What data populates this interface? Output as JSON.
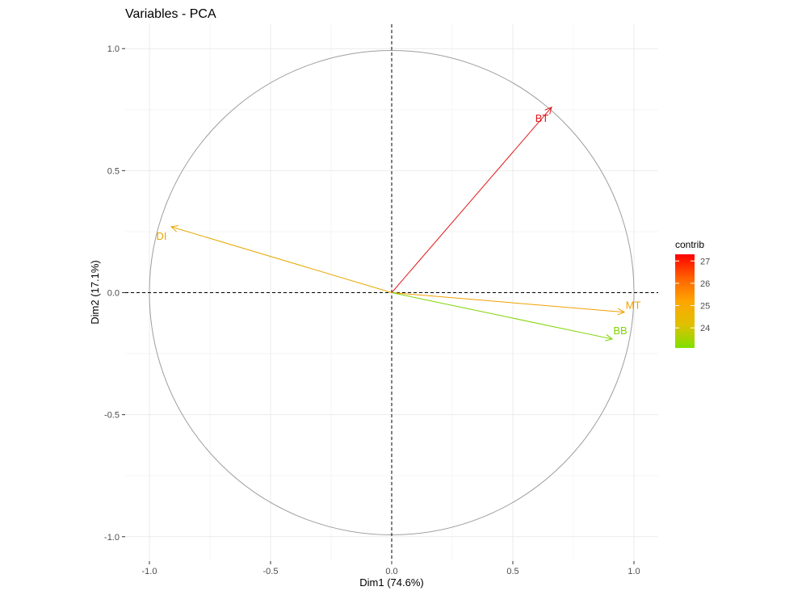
{
  "chart_data": {
    "type": "scatter",
    "title": "Variables - PCA",
    "xlabel": "Dim1 (74.6%)",
    "ylabel": "Dim2 (17.1%)",
    "xlim": [
      -1.1,
      1.1
    ],
    "ylim": [
      -1.1,
      1.1
    ],
    "x_ticks": [
      -1.0,
      -0.5,
      0.0,
      0.5,
      1.0
    ],
    "y_ticks": [
      -1.0,
      -0.5,
      0.0,
      0.5,
      1.0
    ],
    "x_tick_labels": [
      "-1.0",
      "-0.5",
      "0.0",
      "0.5",
      "1.0"
    ],
    "y_tick_labels": [
      "-1.0",
      "-0.5",
      "0.0",
      "0.5",
      "1.0"
    ],
    "grid": true,
    "correlation_circle": true,
    "variables": [
      {
        "name": "BT",
        "x": 0.66,
        "y": 0.76,
        "contrib": 27.3,
        "color": "#e31a1c"
      },
      {
        "name": "DI",
        "x": -0.91,
        "y": 0.27,
        "contrib": 25.0,
        "color": "#e6a800"
      },
      {
        "name": "MT",
        "x": 0.96,
        "y": -0.08,
        "contrib": 24.9,
        "color": "#f0a000"
      },
      {
        "name": "BB",
        "x": 0.91,
        "y": -0.19,
        "contrib": 23.1,
        "color": "#7fd400"
      }
    ],
    "legend": {
      "title": "contrib",
      "position": "right",
      "range": [
        23.1,
        27.3
      ],
      "ticks": [
        24,
        25,
        26,
        27
      ],
      "tick_labels": [
        "24",
        "25",
        "26",
        "27"
      ],
      "gradient": [
        "#80e000",
        "#e0c000",
        "#ffa500",
        "#ff6000",
        "#ff0000"
      ]
    }
  }
}
